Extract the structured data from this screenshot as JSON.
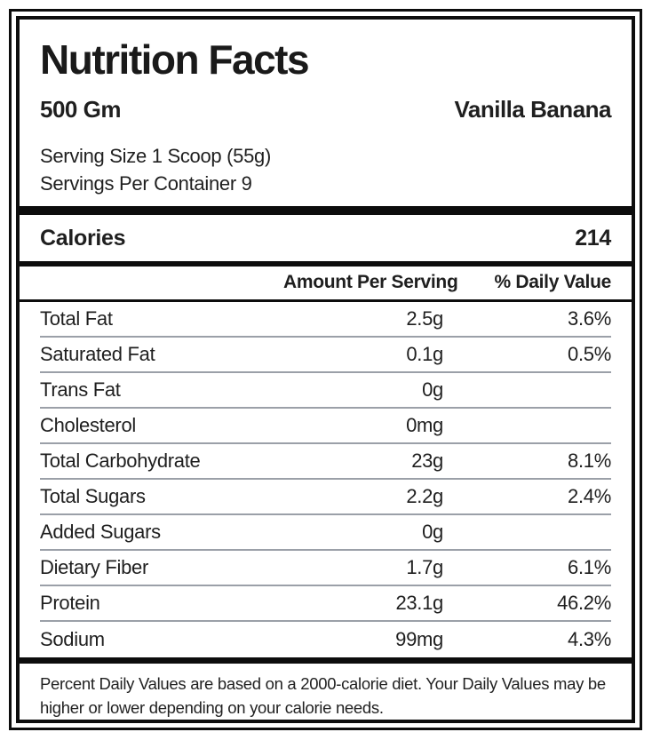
{
  "label": {
    "title": "Nutrition Facts",
    "net_weight": "500 Gm",
    "flavor": "Vanilla Banana",
    "serving_size": "Serving Size 1 Scoop (55g)",
    "servings_per_container": "Servings Per Container 9",
    "calories_label": "Calories",
    "calories_value": "214",
    "footnote": "Percent Daily Values are based on a 2000-calorie diet. Your Daily Values may be higher or lower depending on your calorie needs."
  },
  "nutrition_table": {
    "headers": {
      "amount": "Amount Per Serving",
      "daily_value": "% Daily Value"
    },
    "rows": [
      {
        "label": "Total Fat",
        "amount": "2.5g",
        "dv": "3.6%"
      },
      {
        "label": "Saturated Fat",
        "amount": "0.1g",
        "dv": "0.5%"
      },
      {
        "label": "Trans Fat",
        "amount": "0g",
        "dv": ""
      },
      {
        "label": "Cholesterol",
        "amount": "0mg",
        "dv": ""
      },
      {
        "label": "Total Carbohydrate",
        "amount": "23g",
        "dv": "8.1%"
      },
      {
        "label": "Total Sugars",
        "amount": "2.2g",
        "dv": "2.4%"
      },
      {
        "label": "Added Sugars",
        "amount": "0g",
        "dv": ""
      },
      {
        "label": "Dietary Fiber",
        "amount": "1.7g",
        "dv": "6.1%"
      },
      {
        "label": "Protein",
        "amount": "23.1g",
        "dv": "46.2%"
      },
      {
        "label": "Sodium",
        "amount": "99mg",
        "dv": "4.3%"
      }
    ]
  },
  "colors": {
    "text": "#1f1f1f",
    "bar": "#0d0d0d",
    "divider": "#9ba0a8",
    "background": "#ffffff"
  }
}
